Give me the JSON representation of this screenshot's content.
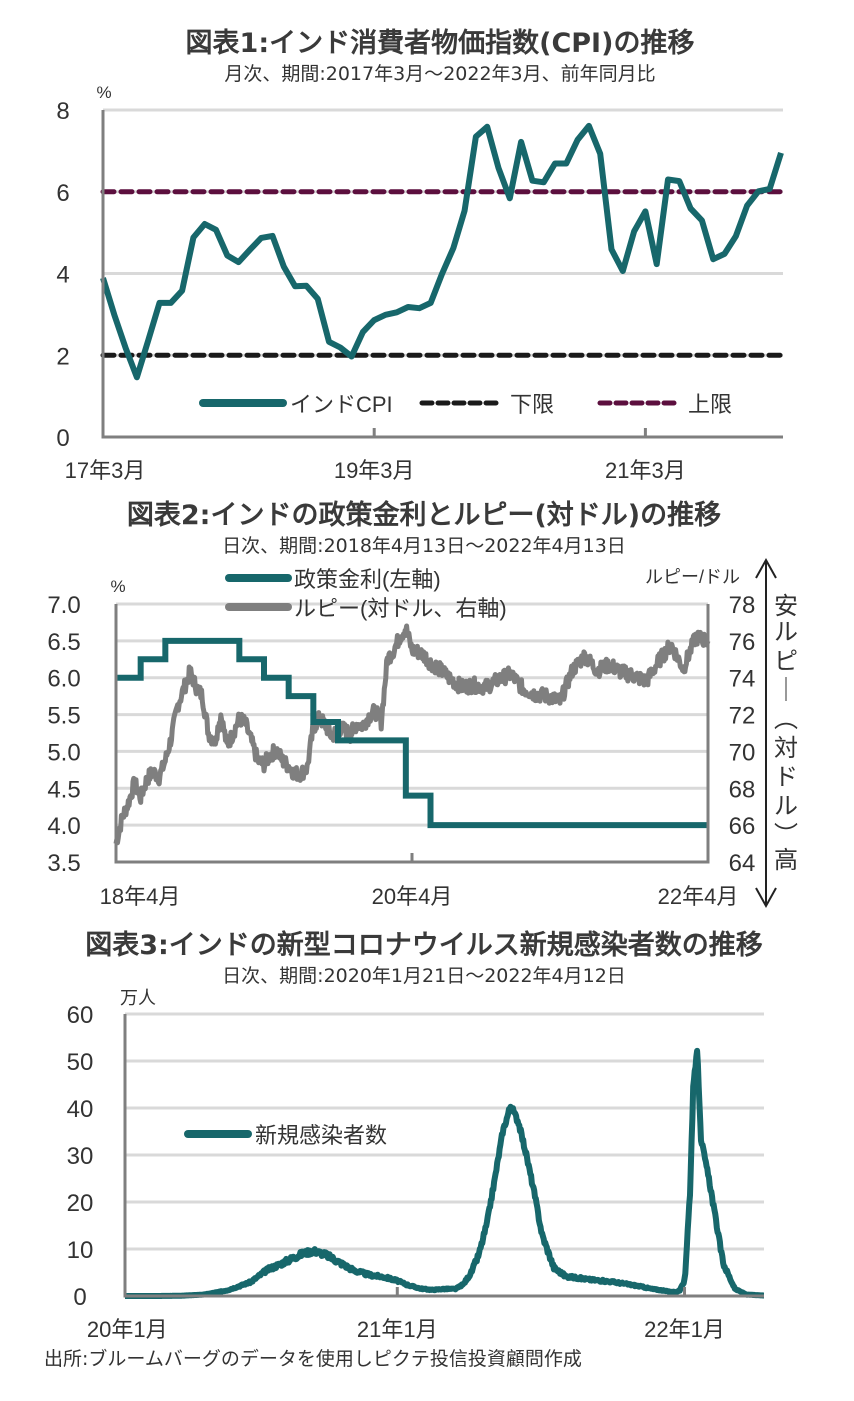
{
  "chart_data": [
    {
      "type": "line",
      "title": "図表1:インド消費者物価指数(CPI)の推移",
      "subtitle": "月次、期間:2017年3月～2022年3月、前年同月比",
      "ylabel": "%",
      "ylim": [
        0,
        8
      ],
      "yticks": [
        "0",
        "2",
        "4",
        "6",
        "8"
      ],
      "xticks": [
        "17年3月",
        "19年3月",
        "21年3月"
      ],
      "x_start": "2017-03",
      "x_end": "2022-03",
      "grid": true,
      "legend_position": "bottom-inside",
      "series": [
        {
          "name": "インドCPI",
          "color": "#17676b",
          "style": "solid",
          "values": [
            3.89,
            2.99,
            2.18,
            1.46,
            2.36,
            3.28,
            3.28,
            3.58,
            4.88,
            5.21,
            5.07,
            4.44,
            4.28,
            4.58,
            4.87,
            4.92,
            4.17,
            3.69,
            3.7,
            3.38,
            2.33,
            2.19,
            1.97,
            2.57,
            2.86,
            2.99,
            3.05,
            3.18,
            3.15,
            3.28,
            3.99,
            4.62,
            5.54,
            7.35,
            7.59,
            6.58,
            5.84,
            7.22,
            6.27,
            6.23,
            6.69,
            6.69,
            7.27,
            7.61,
            6.93,
            4.59,
            4.06,
            5.03,
            5.52,
            4.23,
            6.3,
            6.26,
            5.59,
            5.3,
            4.35,
            4.48,
            4.91,
            5.66,
            6.01,
            6.07,
            6.95
          ]
        },
        {
          "name": "下限",
          "color": "#1a1a1a",
          "style": "dashed",
          "values": [
            2,
            2
          ]
        },
        {
          "name": "上限",
          "color": "#5c0f3e",
          "style": "dashed",
          "values": [
            6,
            6
          ]
        }
      ]
    },
    {
      "type": "line",
      "title": "図表2:インドの政策金利とルピー(対ドル)の推移",
      "subtitle": "日次、期間:2018年4月13日～2022年4月13日",
      "ylabel_left": "%",
      "ylabel_right": "ルピー/ドル",
      "ylim_left": [
        3.5,
        7.0
      ],
      "ylim_right": [
        64,
        78
      ],
      "yticks_left": [
        "3.5",
        "4.0",
        "4.5",
        "5.0",
        "5.5",
        "6.0",
        "6.5",
        "7.0"
      ],
      "yticks_right": [
        "64",
        "66",
        "68",
        "70",
        "72",
        "74",
        "76",
        "78"
      ],
      "xticks": [
        "18年4月",
        "20年4月",
        "22年4月"
      ],
      "right_axis_annotation": {
        "top": "安",
        "middle": "ルピー(対ドル)",
        "bottom": "高"
      },
      "grid": true,
      "legend_position": "top",
      "series": [
        {
          "name": "政策金利(左軸)",
          "color": "#17676b",
          "axis": "left",
          "x_months_from_start": [
            0,
            2,
            4,
            10,
            12,
            14,
            16,
            18,
            23.5,
            25.5,
            48
          ],
          "values": [
            6.0,
            6.25,
            6.5,
            6.25,
            6.0,
            5.75,
            5.4,
            5.15,
            4.4,
            4.0,
            4.0
          ]
        },
        {
          "name": "ルピー(対ドル、右軸)",
          "color": "#7f7f7f",
          "axis": "right",
          "x_months_from_start": [
            0,
            0.5,
            1,
            1.5,
            2,
            2.5,
            3,
            3.5,
            4,
            4.5,
            5,
            5.5,
            6,
            6.5,
            7,
            7.5,
            8,
            8.5,
            9,
            9.5,
            10,
            10.5,
            11,
            11.5,
            12,
            12.5,
            13,
            13.5,
            14,
            14.5,
            15,
            15.5,
            16,
            16.5,
            17,
            17.5,
            18,
            18.5,
            19,
            19.5,
            20,
            20.5,
            21,
            21.5,
            22,
            22.5,
            23,
            23.5,
            24,
            24.5,
            25,
            25.5,
            26,
            27,
            28,
            29,
            30,
            31,
            32,
            33,
            34,
            35,
            36,
            37,
            38,
            39,
            40,
            41,
            42,
            43,
            44,
            45,
            46,
            47,
            48
          ],
          "values": [
            65.0,
            66.4,
            67.2,
            68.3,
            67.5,
            68.5,
            68.9,
            68.6,
            69.5,
            70.8,
            72.5,
            73.4,
            74.3,
            73.5,
            73.0,
            71.0,
            70.5,
            72.0,
            70.3,
            71.0,
            71.8,
            71.5,
            70.5,
            69.5,
            69.3,
            69.8,
            70.1,
            69.5,
            69.2,
            68.8,
            68.8,
            69.1,
            71.3,
            71.8,
            71.4,
            70.8,
            71.2,
            71.2,
            70.9,
            71.5,
            71.4,
            71.9,
            72.2,
            71.6,
            75.0,
            75.5,
            76.2,
            76.7,
            75.5,
            75.4,
            75.2,
            74.8,
            74.6,
            74.0,
            73.5,
            73.6,
            73.5,
            73.9,
            74.2,
            73.4,
            73.1,
            73.0,
            72.7,
            74.4,
            75.2,
            74.4,
            74.7,
            74.3,
            74.1,
            73.8,
            74.9,
            75.8,
            74.5,
            76.2,
            76.0
          ]
        }
      ]
    },
    {
      "type": "line",
      "title": "図表3:インドの新型コロナウイルス新規感染者数の推移",
      "subtitle": "日次、期間:2020年1月21日～2022年4月12日",
      "ylabel": "万人",
      "ylim": [
        0,
        60
      ],
      "yticks": [
        "0",
        "10",
        "20",
        "30",
        "40",
        "50",
        "60"
      ],
      "xticks": [
        "20年1月",
        "21年1月",
        "22年1月"
      ],
      "x_start": "2020-01-21",
      "x_end": "2022-04-12",
      "grid": true,
      "legend_position": "left-inside",
      "series": [
        {
          "name": "新規感染者数",
          "color": "#17676b",
          "x_days_from_start": [
            0,
            40,
            70,
            100,
            130,
            160,
            180,
            200,
            225,
            240,
            255,
            270,
            290,
            310,
            330,
            345,
            360,
            375,
            390,
            405,
            420,
            430,
            440,
            450,
            460,
            470,
            475,
            480,
            490,
            500,
            510,
            520,
            530,
            545,
            560,
            590,
            620,
            650,
            670,
            690,
            700,
            705,
            710,
            712,
            715,
            718,
            722,
            727,
            732,
            737,
            742,
            750,
            760,
            775,
            790,
            812
          ],
          "values": [
            0,
            0,
            0.05,
            0.3,
            1.2,
            3.0,
            5.5,
            7.0,
            9.0,
            9.6,
            8.8,
            7.4,
            5.5,
            4.5,
            4.0,
            3.3,
            2.3,
            1.6,
            1.3,
            1.5,
            1.5,
            2.5,
            5.0,
            9.0,
            15.5,
            25.0,
            30.0,
            35.0,
            40.5,
            37.0,
            30.0,
            22.0,
            13.0,
            6.0,
            4.2,
            3.5,
            3.0,
            2.2,
            1.5,
            1.0,
            0.8,
            1.2,
            2.8,
            5.0,
            14.0,
            22.0,
            44.0,
            52.6,
            33.5,
            29.0,
            25.0,
            17.0,
            7.0,
            1.5,
            0.3,
            0.1
          ]
        }
      ]
    },
    {
      "type": "text",
      "source_note": "出所:ブルームバーグのデータを使用しピクテ投信投資顧問作成"
    }
  ]
}
